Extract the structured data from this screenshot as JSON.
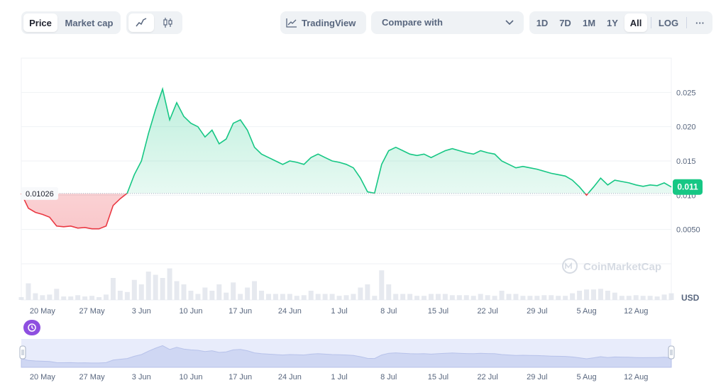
{
  "toolbar": {
    "price_tab": "Price",
    "market_cap_tab": "Market cap",
    "line_icon": "line-chart-icon",
    "candle_icon": "candlestick-icon",
    "tradingview_label": "TradingView",
    "compare_label": "Compare with",
    "ranges": [
      "1D",
      "7D",
      "1M",
      "1Y",
      "All"
    ],
    "active_range": "All",
    "log_label": "LOG",
    "more_label": "···"
  },
  "colors": {
    "up": "#16c784",
    "down": "#ea3943",
    "accent": "#8e4fe0",
    "grid": "#eff2f5"
  },
  "chart_data": {
    "type": "area",
    "currency": "USD",
    "reference_value": 0.01026,
    "reference_label": "0.01026",
    "current_value_label": "0.011",
    "y_ticks": [
      0.005,
      0.01,
      0.015,
      0.02,
      0.025
    ],
    "y_tick_labels": [
      "0.0050",
      "0.010",
      "0.015",
      "0.020",
      "0.025"
    ],
    "ylim": [
      0,
      0.03
    ],
    "x_ticks": [
      "20 May",
      "27 May",
      "3 Jun",
      "10 Jun",
      "17 Jun",
      "24 Jun",
      "1 Jul",
      "8 Jul",
      "15 Jul",
      "22 Jul",
      "29 Jul",
      "5 Aug",
      "12 Aug"
    ],
    "x_tick_dates": [
      "2024-05-20",
      "2024-05-27",
      "2024-06-03",
      "2024-06-10",
      "2024-06-17",
      "2024-06-24",
      "2024-07-01",
      "2024-07-08",
      "2024-07-15",
      "2024-07-22",
      "2024-07-29",
      "2024-08-05",
      "2024-08-12"
    ],
    "x_range": [
      "2024-05-17",
      "2024-08-17"
    ],
    "points": [
      [
        "2024-05-17",
        0.01026
      ],
      [
        "2024-05-18",
        0.0081
      ],
      [
        "2024-05-19",
        0.0075
      ],
      [
        "2024-05-20",
        0.0072
      ],
      [
        "2024-05-21",
        0.0068
      ],
      [
        "2024-05-22",
        0.0055
      ],
      [
        "2024-05-23",
        0.0054
      ],
      [
        "2024-05-24",
        0.0055
      ],
      [
        "2024-05-25",
        0.0052
      ],
      [
        "2024-05-26",
        0.0053
      ],
      [
        "2024-05-27",
        0.0051
      ],
      [
        "2024-05-28",
        0.0051
      ],
      [
        "2024-05-29",
        0.0055
      ],
      [
        "2024-05-30",
        0.0085
      ],
      [
        "2024-05-31",
        0.0095
      ],
      [
        "2024-06-01",
        0.0103
      ],
      [
        "2024-06-02",
        0.013
      ],
      [
        "2024-06-03",
        0.015
      ],
      [
        "2024-06-04",
        0.019
      ],
      [
        "2024-06-05",
        0.0225
      ],
      [
        "2024-06-06",
        0.0255
      ],
      [
        "2024-06-07",
        0.021
      ],
      [
        "2024-06-08",
        0.0235
      ],
      [
        "2024-06-09",
        0.0215
      ],
      [
        "2024-06-10",
        0.0205
      ],
      [
        "2024-06-11",
        0.02
      ],
      [
        "2024-06-12",
        0.0185
      ],
      [
        "2024-06-13",
        0.0195
      ],
      [
        "2024-06-14",
        0.0175
      ],
      [
        "2024-06-15",
        0.0182
      ],
      [
        "2024-06-16",
        0.0205
      ],
      [
        "2024-06-17",
        0.021
      ],
      [
        "2024-06-18",
        0.0195
      ],
      [
        "2024-06-19",
        0.017
      ],
      [
        "2024-06-20",
        0.016
      ],
      [
        "2024-06-21",
        0.0155
      ],
      [
        "2024-06-22",
        0.015
      ],
      [
        "2024-06-23",
        0.0145
      ],
      [
        "2024-06-24",
        0.015
      ],
      [
        "2024-06-25",
        0.0148
      ],
      [
        "2024-06-26",
        0.0145
      ],
      [
        "2024-06-27",
        0.0155
      ],
      [
        "2024-06-28",
        0.016
      ],
      [
        "2024-06-29",
        0.0155
      ],
      [
        "2024-06-30",
        0.015
      ],
      [
        "2024-07-01",
        0.0148
      ],
      [
        "2024-07-02",
        0.0145
      ],
      [
        "2024-07-03",
        0.014
      ],
      [
        "2024-07-04",
        0.0125
      ],
      [
        "2024-07-05",
        0.0105
      ],
      [
        "2024-07-06",
        0.0103
      ],
      [
        "2024-07-07",
        0.0145
      ],
      [
        "2024-07-08",
        0.0165
      ],
      [
        "2024-07-09",
        0.017
      ],
      [
        "2024-07-10",
        0.0165
      ],
      [
        "2024-07-11",
        0.016
      ],
      [
        "2024-07-12",
        0.0158
      ],
      [
        "2024-07-13",
        0.016
      ],
      [
        "2024-07-14",
        0.0155
      ],
      [
        "2024-07-15",
        0.016
      ],
      [
        "2024-07-16",
        0.0165
      ],
      [
        "2024-07-17",
        0.0168
      ],
      [
        "2024-07-18",
        0.0165
      ],
      [
        "2024-07-19",
        0.0162
      ],
      [
        "2024-07-20",
        0.016
      ],
      [
        "2024-07-21",
        0.0165
      ],
      [
        "2024-07-22",
        0.0162
      ],
      [
        "2024-07-23",
        0.016
      ],
      [
        "2024-07-24",
        0.015
      ],
      [
        "2024-07-25",
        0.0145
      ],
      [
        "2024-07-26",
        0.014
      ],
      [
        "2024-07-27",
        0.0142
      ],
      [
        "2024-07-28",
        0.014
      ],
      [
        "2024-07-29",
        0.0138
      ],
      [
        "2024-07-30",
        0.0135
      ],
      [
        "2024-07-31",
        0.0132
      ],
      [
        "2024-08-01",
        0.013
      ],
      [
        "2024-08-02",
        0.0128
      ],
      [
        "2024-08-03",
        0.0122
      ],
      [
        "2024-08-04",
        0.0112
      ],
      [
        "2024-08-05",
        0.01
      ],
      [
        "2024-08-06",
        0.0112
      ],
      [
        "2024-08-07",
        0.0125
      ],
      [
        "2024-08-08",
        0.0115
      ],
      [
        "2024-08-09",
        0.0122
      ],
      [
        "2024-08-10",
        0.012
      ],
      [
        "2024-08-11",
        0.0118
      ],
      [
        "2024-08-12",
        0.0115
      ],
      [
        "2024-08-13",
        0.0113
      ],
      [
        "2024-08-14",
        0.0115
      ],
      [
        "2024-08-15",
        0.0114
      ],
      [
        "2024-08-16",
        0.0118
      ],
      [
        "2024-08-17",
        0.0112
      ]
    ]
  },
  "watermark": "CoinMarketCap"
}
